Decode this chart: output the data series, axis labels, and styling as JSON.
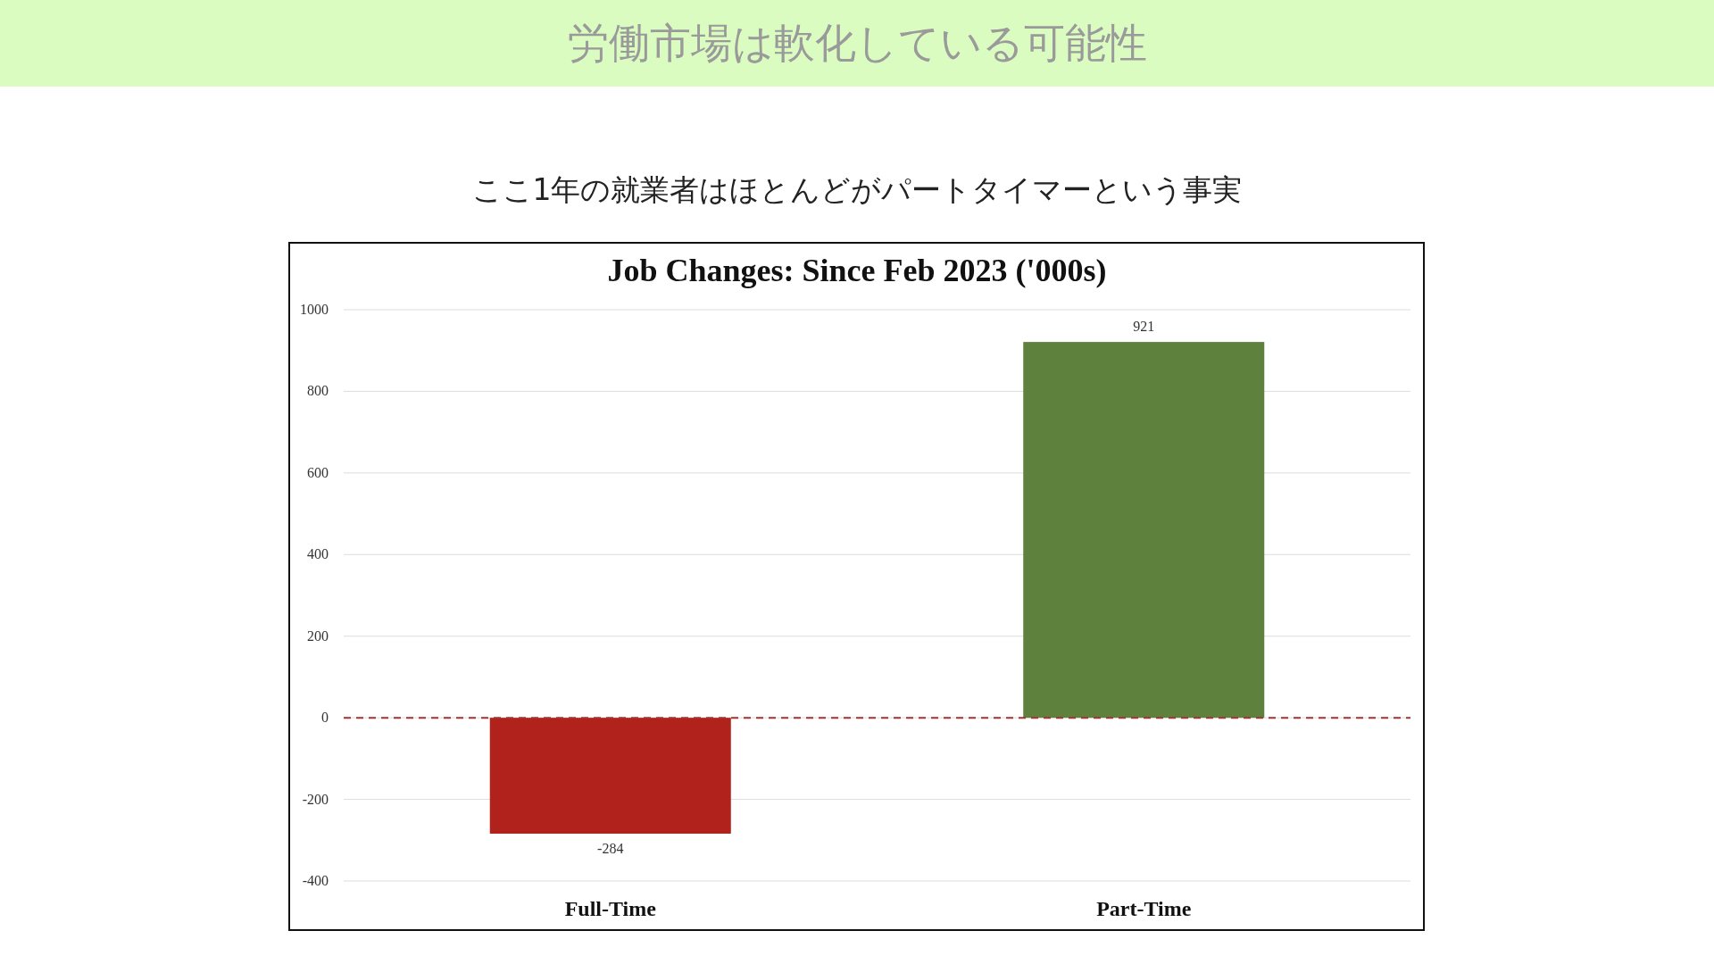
{
  "chart_data": {
    "type": "bar",
    "title": "Job Changes: Since Feb 2023 ('000s)",
    "subtitle": "ここ1年の就業者はほとんどがパートタイマーという事実",
    "annotations": [
      "労働市場は軟化している可能性"
    ],
    "categories": [
      "Full-Time",
      "Part-Time"
    ],
    "values": [
      -284,
      921
    ],
    "colors": [
      "#b0221b",
      "#5f813e"
    ],
    "ylim": [
      -400,
      1000
    ],
    "yticks": [
      -400,
      -200,
      0,
      200,
      400,
      600,
      800,
      1000
    ],
    "grid": "y",
    "data_labels": true,
    "ref_lines": [
      {
        "axis": "y",
        "value": 0,
        "color": "#a83232",
        "line_style": "dashed"
      }
    ]
  }
}
